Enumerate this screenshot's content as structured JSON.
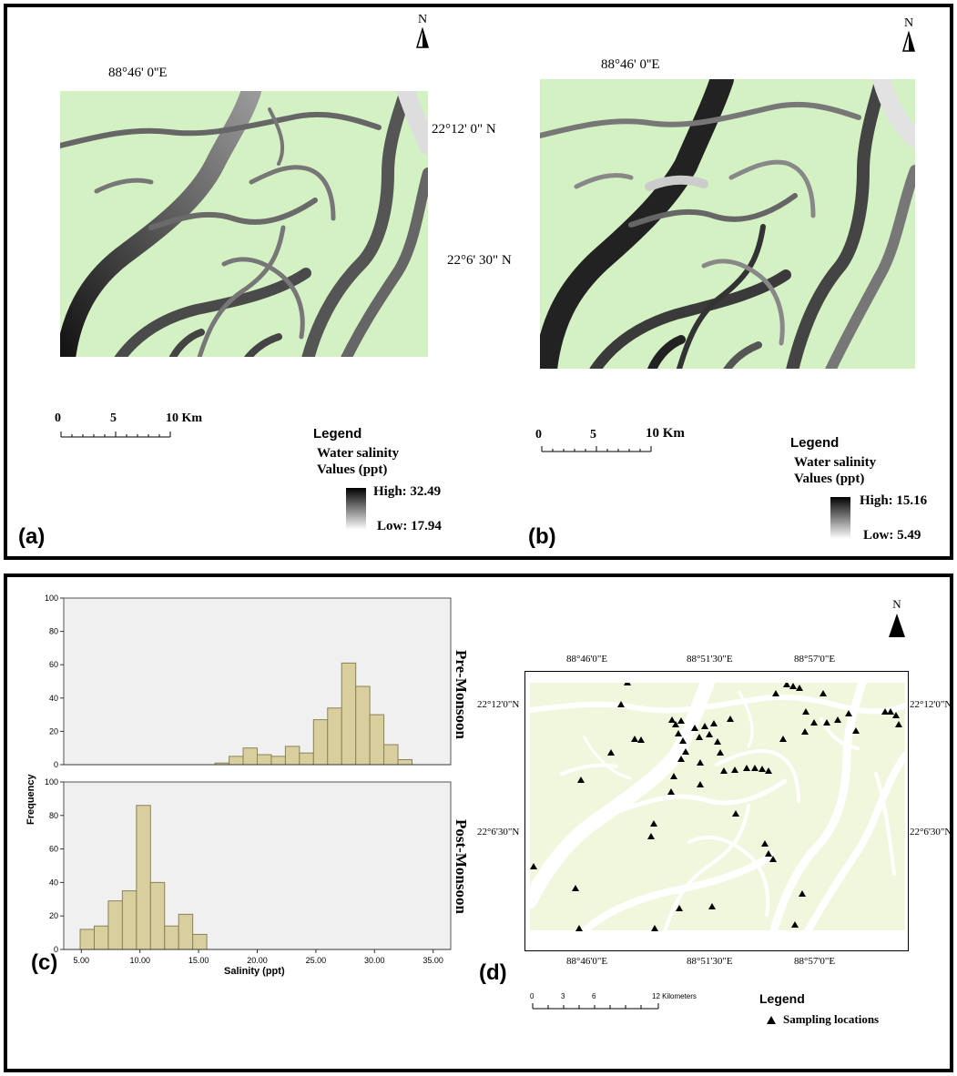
{
  "panel_a": {
    "label": "(a)",
    "north": "N",
    "lon_label": "88°46' 0''E",
    "lat_labels": [
      "22°12' 0\" N",
      "22°6' 30\" N"
    ],
    "scale": {
      "ticks": [
        "0",
        "5",
        "10 Km"
      ]
    },
    "legend": {
      "title": "Legend",
      "line1": "Water salinity",
      "line2": "Values (ppt)",
      "high": "High: 32.49",
      "low": "Low: 17.94"
    }
  },
  "panel_b": {
    "label": "(b)",
    "north": "N",
    "lon_label": "88°46' 0''E",
    "scale": {
      "ticks": [
        "0",
        "5",
        "10 Km"
      ]
    },
    "legend": {
      "title": "Legend",
      "line1": "Water salinity",
      "line2": "Values (ppt)",
      "high": "High: 15.16",
      "low": "Low: 5.49"
    }
  },
  "panel_c": {
    "label": "(c)",
    "ylabel": "Frequency",
    "xlabel": "Salinity (ppt)",
    "series_titles": [
      "Pre-Monsoon",
      "Post-Monsoon"
    ]
  },
  "panel_d": {
    "label": "(d)",
    "north": "N",
    "lon_labels": [
      "88°46'0\"E",
      "88°51'30\"E",
      "88°57'0\"E"
    ],
    "lat_labels": [
      "22°12'0\"N",
      "22°6'30\"N"
    ],
    "scale": {
      "ticks": [
        "0",
        "3",
        "6",
        "12 Kilometers"
      ]
    },
    "legend": {
      "title": "Legend",
      "item": "Sampling locations"
    }
  },
  "colors": {
    "land_ab": "#d4f1c4",
    "land_d": "#f0f7dd",
    "bar_fill": "#d9cf9e",
    "bar_stroke": "#8a8258",
    "plot_bg": "#f0f0f0"
  },
  "chart_data": {
    "type": "bar",
    "xlabel": "Salinity (ppt)",
    "ylabel": "Frequency",
    "xlim": [
      3.5,
      36.5
    ],
    "ylim": [
      0,
      100
    ],
    "x_ticks": [
      "5.00",
      "10.00",
      "15.00",
      "20.00",
      "25.00",
      "30.00",
      "35.00"
    ],
    "y_ticks": [
      "0",
      "20",
      "40",
      "60",
      "80",
      "100"
    ],
    "bin_width": 1.2,
    "series": [
      {
        "name": "Pre-Monsoon",
        "bin_starts": [
          16.4,
          17.6,
          18.8,
          20.0,
          21.2,
          22.4,
          23.6,
          24.8,
          26.0,
          27.2,
          28.4,
          29.6,
          30.8,
          32.0
        ],
        "values": [
          1,
          5,
          10,
          6,
          5,
          11,
          7,
          27,
          34,
          61,
          47,
          30,
          12,
          3
        ]
      },
      {
        "name": "Post-Monsoon",
        "bin_starts": [
          4.9,
          6.1,
          7.3,
          8.5,
          9.7,
          10.9,
          12.1,
          13.3,
          14.5
        ],
        "values": [
          12,
          14,
          29,
          35,
          86,
          40,
          14,
          21,
          9
        ]
      }
    ]
  }
}
